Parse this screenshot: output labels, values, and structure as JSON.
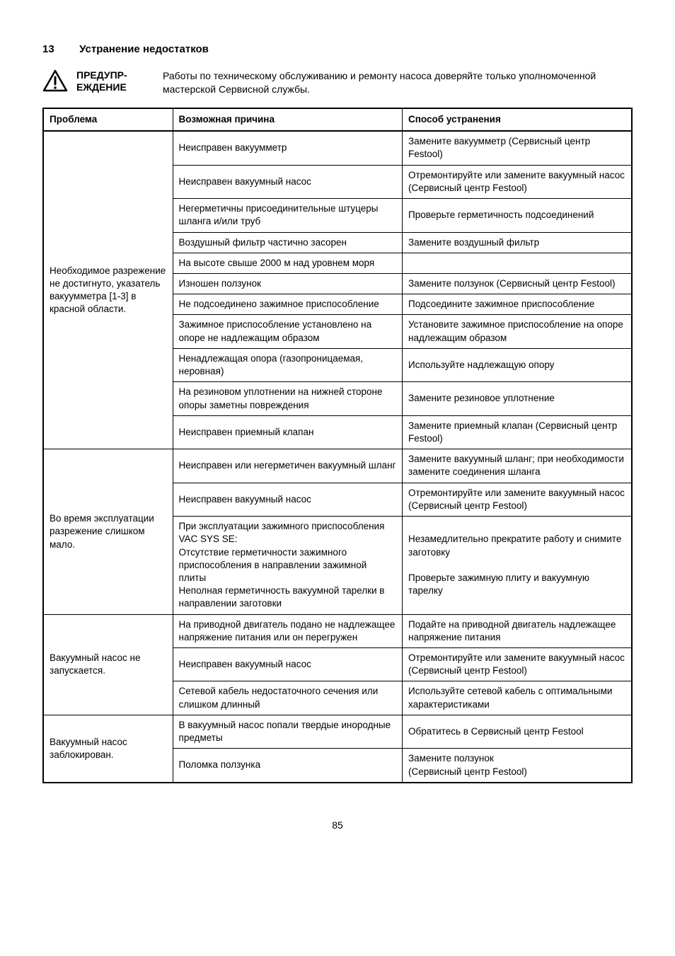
{
  "section": {
    "number": "13",
    "title": "Устранение недостатков"
  },
  "warning": {
    "label_line1": "ПРЕДУПР-",
    "label_line2": "ЕЖДЕНИЕ",
    "text": "Работы по техническому обслуживанию и ремонту насоса доверяйте только уполномоченной мастерской Сервисной службы."
  },
  "table": {
    "headers": {
      "problem": "Проблема",
      "cause": "Возможная причина",
      "fix": "Способ устранения"
    },
    "groups": [
      {
        "problem": "Необходимое разрежение не достигнуто, указатель вакуумметра [1-3] в красной области.",
        "rows": [
          {
            "cause": "Неисправен вакуумметр",
            "fix": "Замените вакуумметр (Сервисный центр Festool)"
          },
          {
            "cause": "Неисправен вакуумный насос",
            "fix": "Отремонтируйте или замените вакуумный насос (Сервисный центр Festool)"
          },
          {
            "cause": "Негерметичны присоединительные штуцеры шланга и/или труб",
            "fix": "Проверьте герметичность подсоединений"
          },
          {
            "cause": "Воздушный фильтр частично засорен",
            "fix": "Замените воздушный фильтр"
          },
          {
            "cause": "На высоте свыше 2000 м над уровнем моря",
            "fix": ""
          },
          {
            "cause": "Изношен ползунок",
            "fix": "Замените ползунок (Сервисный центр Festool)"
          },
          {
            "cause": "Не подсоединено зажимное приспособление",
            "fix": "Подсоедините зажимное приспособление"
          },
          {
            "cause": "Зажимное приспособление установлено на опоре не надлежащим образом",
            "fix": "Установите зажимное приспособление на опоре надлежащим образом"
          },
          {
            "cause": "Ненадлежащая опора (газопроницаемая, неровная)",
            "fix": "Используйте надлежащую опору"
          },
          {
            "cause": "На резиновом уплотнении на нижней стороне опоры заметны повреждения",
            "fix": "Замените резиновое уплотнение"
          },
          {
            "cause": "Неисправен приемный клапан",
            "fix": "Замените приемный клапан (Сервисный центр Festool)"
          }
        ]
      },
      {
        "problem": "Во время эксплуатации разрежение слишком мало.",
        "rows": [
          {
            "cause": "Неисправен или негерметичен вакуумный шланг",
            "fix": "Замените вакуумный шланг; при необходимости замените соединения шланга"
          },
          {
            "cause": "Неисправен вакуумный насос",
            "fix": "Отремонтируйте или замените вакуумный насос (Сервисный центр Festool)"
          },
          {
            "cause": "При эксплуатации зажимного приспособления VAC SYS SE:\nОтсутствие герметичности зажимного приспособления в направлении зажимной плиты\nНеполная герметичность вакуумной тарелки в направлении заготовки",
            "fix": "Незамедлительно прекратите работу и снимите заготовку\n\nПроверьте зажимную плиту и вакуумную тарелку"
          }
        ]
      },
      {
        "problem": "Вакуумный насос не запускается.",
        "rows": [
          {
            "cause": "На приводной двигатель подано не надлежащее напряжение питания или он перегружен",
            "fix": "Подайте на приводной двигатель надлежащее напряжение питания"
          },
          {
            "cause": "Неисправен вакуумный насос",
            "fix": "Отремонтируйте или замените вакуумный насос (Сервисный центр Festool)"
          },
          {
            "cause": "Сетевой кабель недостаточного сечения или слишком длинный",
            "fix": "Используйте сетевой кабель с оптимальными характеристиками"
          }
        ]
      },
      {
        "problem": "Вакуумный насос заблокирован.",
        "rows": [
          {
            "cause": "В вакуумный насос попали твердые инородные предметы",
            "fix": "Обратитесь в Сервисный центр Festool"
          },
          {
            "cause": "Поломка ползунка",
            "fix": "Замените ползунок\n(Сервисный центр Festool)"
          }
        ]
      }
    ]
  },
  "page_number": "85",
  "colors": {
    "text": "#000000",
    "bg": "#ffffff",
    "border": "#000000"
  }
}
